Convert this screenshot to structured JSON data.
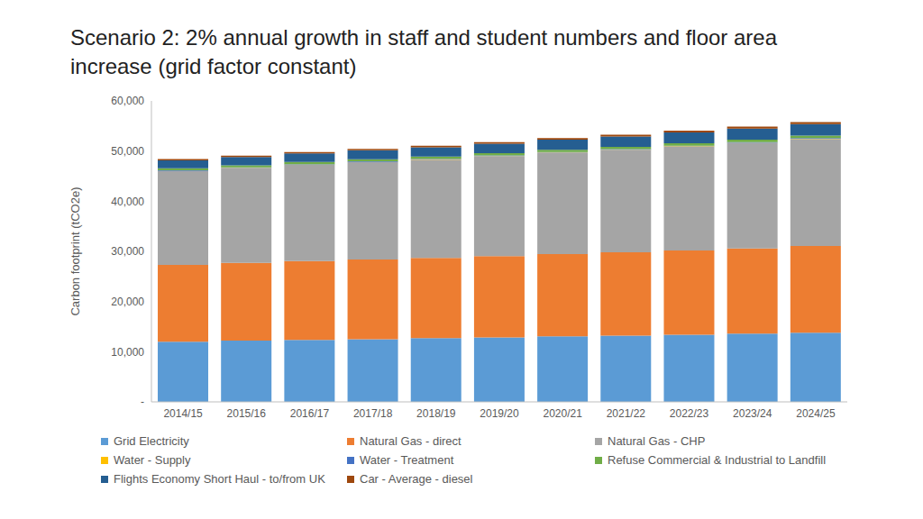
{
  "chart_data": {
    "type": "bar",
    "title": "Scenario 2: 2% annual growth in staff and student numbers and floor area increase (grid factor constant)",
    "y_label": "Carbon footprint (tCO2e)",
    "categories": [
      "2014/15",
      "2015/16",
      "2016/17",
      "2017/18",
      "2018/19",
      "2019/20",
      "2020/21",
      "2021/22",
      "2022/23",
      "2023/24",
      "2024/25"
    ],
    "stacked": true,
    "grid": false,
    "legend": "bottom",
    "ylim": [
      0,
      60000
    ],
    "yticks": [
      {
        "value": 0,
        "label": "-"
      },
      {
        "value": 10000,
        "label": "10,000"
      },
      {
        "value": 20000,
        "label": "20,000"
      },
      {
        "value": 30000,
        "label": "30,000"
      },
      {
        "value": 40000,
        "label": "40,000"
      },
      {
        "value": 50000,
        "label": "50,000"
      },
      {
        "value": 60000,
        "label": "60,000"
      }
    ],
    "series": [
      {
        "name": "Grid Electricity",
        "color": "#5B9BD5",
        "values": [
          12000,
          12200,
          12350,
          12500,
          12700,
          12850,
          13050,
          13200,
          13400,
          13600,
          13800
        ]
      },
      {
        "name": "Natural Gas - direct",
        "color": "#ED7D31",
        "values": [
          15300,
          15500,
          15700,
          15900,
          16000,
          16200,
          16400,
          16600,
          16800,
          17000,
          17300
        ]
      },
      {
        "name": "Natural Gas - CHP",
        "color": "#A5A5A5",
        "values": [
          18700,
          18900,
          19200,
          19400,
          19600,
          19900,
          20200,
          20400,
          20700,
          21000,
          21300
        ]
      },
      {
        "name": "Water - Supply",
        "color": "#FFC000",
        "values": [
          50,
          50,
          50,
          50,
          55,
          55,
          55,
          55,
          60,
          60,
          60
        ]
      },
      {
        "name": "Water - Treatment",
        "color": "#4472C4",
        "values": [
          100,
          100,
          100,
          105,
          105,
          110,
          110,
          115,
          115,
          120,
          120
        ]
      },
      {
        "name": "Refuse Commercial & Industrial to Landfill",
        "color": "#70AD47",
        "values": [
          400,
          410,
          420,
          430,
          440,
          450,
          460,
          470,
          480,
          490,
          500
        ]
      },
      {
        "name": "Flights Economy Short Haul - to/from UK",
        "color": "#255E91",
        "values": [
          1600,
          1650,
          1700,
          1770,
          1840,
          1910,
          1980,
          2060,
          2140,
          2220,
          2300
        ]
      },
      {
        "name": "Car - Average - diesel",
        "color": "#9E480E",
        "values": [
          250,
          265,
          280,
          295,
          310,
          325,
          340,
          355,
          370,
          385,
          400
        ]
      }
    ]
  }
}
